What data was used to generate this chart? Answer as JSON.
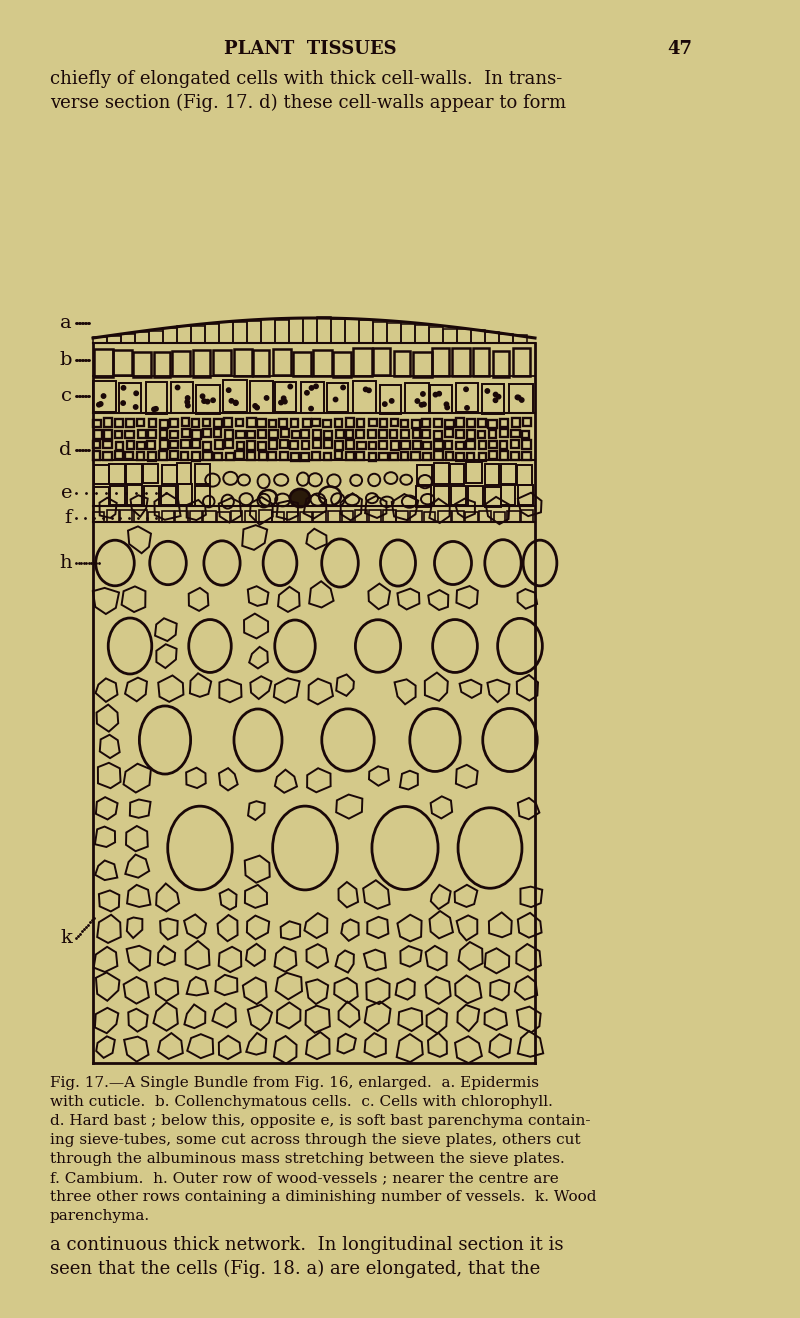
{
  "background_color": "#d4c98a",
  "header_text": "PLANT  TISSUES",
  "page_number": "47",
  "top_text_line1": "chiefly of elongated cells with thick cell-walls.  In trans-",
  "top_text_line2": "verse section (Fig. 17. d) these cell-walls appear to form",
  "caption_lines": [
    "Fig. 17.—A Single Bundle from Fig. 16, enlarged.  a. Epidermis",
    "with cuticle.  b. Collenchymatous cells.  c. Cells with chlorophyll.",
    "d. Hard bast ; below this, opposite e, is soft bast parenchyma contain-",
    "ing sieve-tubes, some cut across through the sieve plates, others cut",
    "through the albuminous mass stretching between the sieve plates.",
    "f. Cambium.  h. Outer row of wood-vessels ; nearer the centre are",
    "three other rows containing a diminishing number of vessels.  k. Wood",
    "parenchyma."
  ],
  "bottom_text_line1": "a continuous thick network.  In longitudinal section it is",
  "bottom_text_line2": "seen that the cells (Fig. 18. a) are elongated, that the",
  "ink_color": "#1a0808",
  "text_color": "#1a0808"
}
